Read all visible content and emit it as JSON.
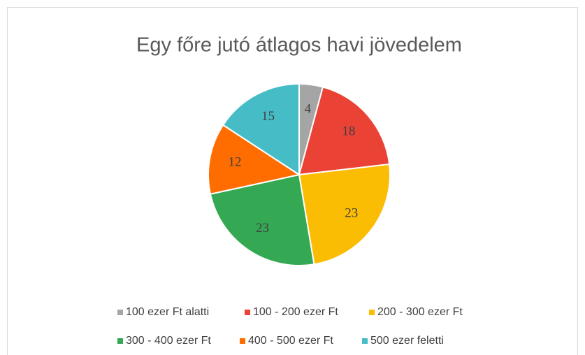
{
  "chart_data": {
    "type": "pie",
    "title": "Egy főre jutó átlagos havi jövedelem",
    "categories": [
      "100 ezer Ft alatti",
      "100 - 200 ezer Ft",
      "200 - 300 ezer Ft",
      "300 - 400 ezer Ft",
      "400 - 500 ezer Ft",
      "500 ezer feletti"
    ],
    "values": [
      4,
      18,
      23,
      23,
      12,
      15
    ],
    "colors": [
      "#a5a5a5",
      "#ea4335",
      "#fbbc04",
      "#34a853",
      "#ff6d01",
      "#46bdc6"
    ]
  }
}
